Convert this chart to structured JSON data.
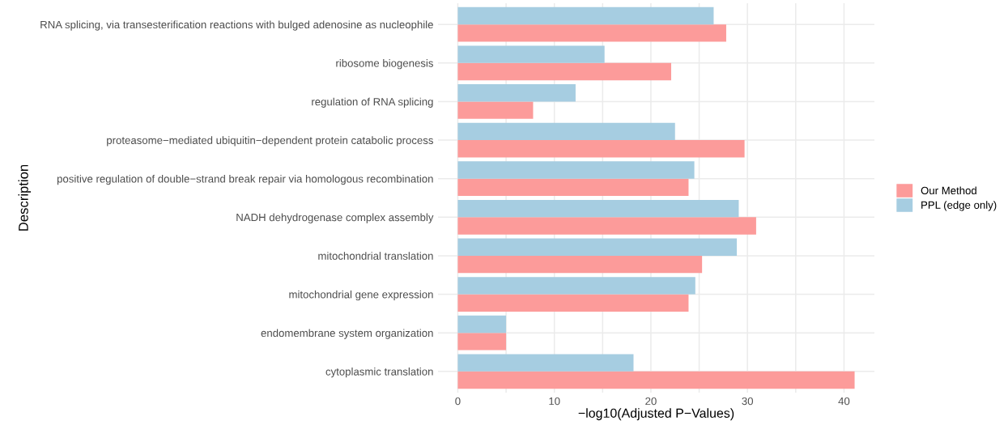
{
  "chart_data": {
    "type": "bar",
    "orientation": "horizontal",
    "xlabel": "−log10(Adjusted P−Values)",
    "ylabel": "Description",
    "categories": [
      "RNA splicing, via transesterification reactions with bulged adenosine as nucleophile",
      "ribosome biogenesis",
      "regulation of RNA splicing",
      "proteasome−mediated ubiquitin−dependent protein catabolic process",
      "positive regulation of double−strand break repair via homologous recombination",
      "NADH dehydrogenase complex assembly",
      "mitochondrial translation",
      "mitochondrial gene expression",
      "endomembrane system organization",
      "cytoplasmic translation"
    ],
    "series": [
      {
        "name": "Our Method",
        "color": "#fc9b9a",
        "values": [
          27.8,
          22.1,
          7.8,
          29.7,
          23.9,
          30.9,
          25.3,
          23.9,
          5.0,
          41.1
        ]
      },
      {
        "name": "PPL (edge only)",
        "color": "#a6cde1",
        "values": [
          26.5,
          15.2,
          12.2,
          22.5,
          24.5,
          29.1,
          28.9,
          24.6,
          5.0,
          18.2
        ]
      }
    ],
    "xlim": [
      -2.05,
      43.15
    ],
    "xticks": [
      0,
      {
        "value": 5,
        "label": null
      },
      10,
      {
        "value": 15,
        "label": null
      },
      20,
      {
        "value": 25,
        "label": null
      },
      30,
      {
        "value": 35,
        "label": null
      },
      40
    ],
    "grid": true,
    "legend": "right"
  }
}
